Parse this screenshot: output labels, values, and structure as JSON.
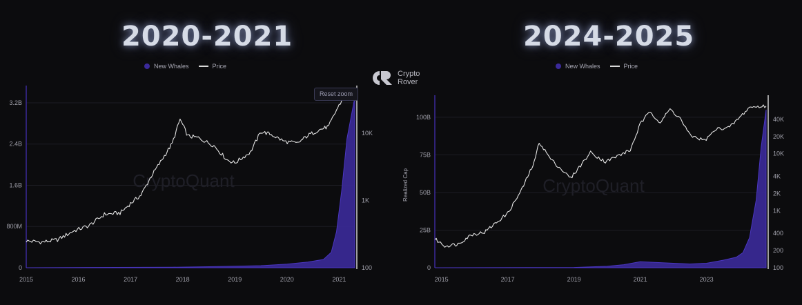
{
  "titles": {
    "left": "2020-2021",
    "right": "2024-2025"
  },
  "logo": {
    "line1": "Crypto",
    "line2": "Rover"
  },
  "reset_zoom": "Reset zoom",
  "watermark": "CryptoQuant",
  "colors": {
    "whales": "#3b2a9a",
    "price": "#e0e0e0",
    "background": "#0c0c0e"
  },
  "chart_data": [
    {
      "type": "area",
      "legend": [
        "New Whales",
        "Price"
      ],
      "legend_placement": "top-center",
      "grid": true,
      "x_ticks": [
        "2015",
        "2016",
        "2017",
        "2018",
        "2019",
        "2020",
        "2021"
      ],
      "xlim": [
        2015.0,
        2021.3
      ],
      "y_left_ticks": [
        "0",
        "800M",
        "1.6B",
        "2.4B",
        "3.2B"
      ],
      "y_left_lim": [
        0,
        3400000000
      ],
      "y_right_ticks": [
        "100",
        "1K",
        "10K"
      ],
      "y_right_scale": "log",
      "y_right_lim": [
        100,
        40000
      ],
      "series": [
        {
          "name": "Price",
          "axis": "right",
          "x": [
            2015.0,
            2015.3,
            2015.6,
            2015.9,
            2016.2,
            2016.5,
            2016.8,
            2017.0,
            2017.2,
            2017.4,
            2017.6,
            2017.8,
            2017.95,
            2018.1,
            2018.3,
            2018.6,
            2018.85,
            2019.0,
            2019.3,
            2019.5,
            2019.7,
            2019.95,
            2020.2,
            2020.4,
            2020.6,
            2020.8,
            2020.95,
            2021.1,
            2021.3
          ],
          "values": [
            250,
            240,
            260,
            350,
            420,
            620,
            650,
            900,
            1200,
            2300,
            4000,
            7000,
            16000,
            9000,
            8500,
            6500,
            4000,
            3600,
            5200,
            10500,
            9500,
            7500,
            7000,
            9200,
            11000,
            12500,
            22000,
            35000,
            55000
          ]
        },
        {
          "name": "New Whales",
          "axis": "left",
          "x": [
            2015.0,
            2017.8,
            2018.5,
            2019.5,
            2020.0,
            2020.4,
            2020.7,
            2020.85,
            2020.95,
            2021.05,
            2021.15,
            2021.3
          ],
          "values": [
            0,
            10000000,
            20000000,
            40000000,
            70000000,
            110000000,
            160000000,
            300000000,
            700000000,
            1500000000,
            2500000000,
            3300000000
          ]
        }
      ]
    },
    {
      "type": "area",
      "legend": [
        "New Whales",
        "Price"
      ],
      "legend_placement": "top-center",
      "grid": true,
      "ylabel": "Realized Cap",
      "x_ticks": [
        "2015",
        "2017",
        "2019",
        "2021",
        "2023"
      ],
      "xlim": [
        2014.8,
        2024.8
      ],
      "y_left_ticks": [
        "0",
        "25B",
        "50B",
        "75B",
        "100B"
      ],
      "y_left_lim": [
        0,
        110000000000
      ],
      "y_right_ticks": [
        "100",
        "200",
        "400",
        "1K",
        "2K",
        "4K",
        "10K",
        "20K",
        "40K"
      ],
      "y_right_scale": "log",
      "y_right_lim": [
        100,
        80000
      ],
      "series": [
        {
          "name": "Price",
          "axis": "right",
          "x": [
            2014.8,
            2015.1,
            2015.5,
            2015.9,
            2016.3,
            2016.7,
            2017.0,
            2017.4,
            2017.8,
            2017.95,
            2018.3,
            2018.9,
            2019.5,
            2019.95,
            2020.3,
            2020.7,
            2021.0,
            2021.3,
            2021.6,
            2021.9,
            2022.2,
            2022.5,
            2022.95,
            2023.3,
            2023.7,
            2024.0,
            2024.3,
            2024.8
          ],
          "values": [
            320,
            240,
            260,
            380,
            420,
            650,
            900,
            2200,
            7000,
            16000,
            8000,
            3700,
            10500,
            7200,
            9000,
            11500,
            33000,
            55000,
            35000,
            60000,
            42000,
            21000,
            17000,
            27000,
            29000,
            43000,
            65000,
            68000
          ]
        },
        {
          "name": "New Whales",
          "axis": "left",
          "x": [
            2014.8,
            2019.0,
            2020.0,
            2020.5,
            2021.0,
            2021.5,
            2022.0,
            2022.5,
            2023.0,
            2023.5,
            2023.9,
            2024.1,
            2024.3,
            2024.5,
            2024.65,
            2024.8
          ],
          "values": [
            0,
            200000000,
            1000000000,
            2000000000,
            4000000000,
            3500000000,
            3000000000,
            2500000000,
            3000000000,
            5000000000,
            7000000000,
            10000000000,
            20000000000,
            45000000000,
            80000000000,
            105000000000
          ]
        }
      ]
    }
  ]
}
